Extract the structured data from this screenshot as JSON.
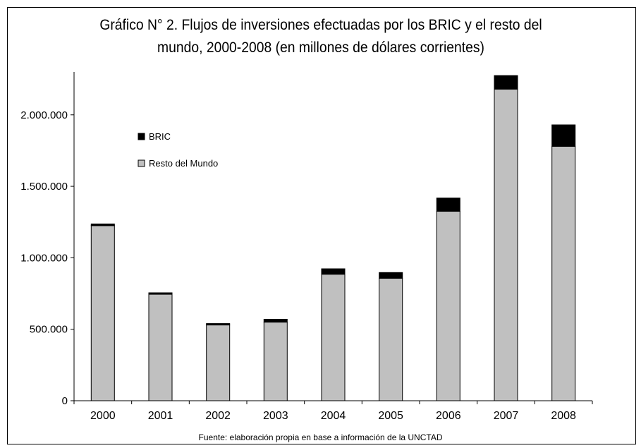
{
  "title_line1": "Gráfico N° 2. Flujos de inversiones efectuadas por los BRIC y el resto del",
  "title_line2": "mundo, 2000-2008 (en millones de dólares corrientes)",
  "source": "Fuente: elaboración propia en base a información de la UNCTAD",
  "chart_data": {
    "type": "bar",
    "stacked": true,
    "categories": [
      "2000",
      "2001",
      "2002",
      "2003",
      "2004",
      "2005",
      "2006",
      "2007",
      "2008"
    ],
    "series": [
      {
        "name": "Resto del Mundo",
        "color": "#c0c0c0",
        "values": [
          1225000,
          745000,
          530000,
          550000,
          885000,
          857000,
          1325000,
          2180000,
          1780000
        ]
      },
      {
        "name": "BRIC",
        "color": "#000000",
        "values": [
          12000,
          10000,
          10000,
          20000,
          38000,
          40000,
          93000,
          95000,
          150000
        ]
      }
    ],
    "yticks": [
      0,
      500000,
      1000000,
      1500000,
      2000000
    ],
    "ytick_labels": [
      "0",
      "500.000",
      "1.000.000",
      "1.500.000",
      "2.000.000"
    ],
    "ylim": [
      0,
      2300000
    ],
    "legend_position": "upper-left inside",
    "grid": false
  }
}
